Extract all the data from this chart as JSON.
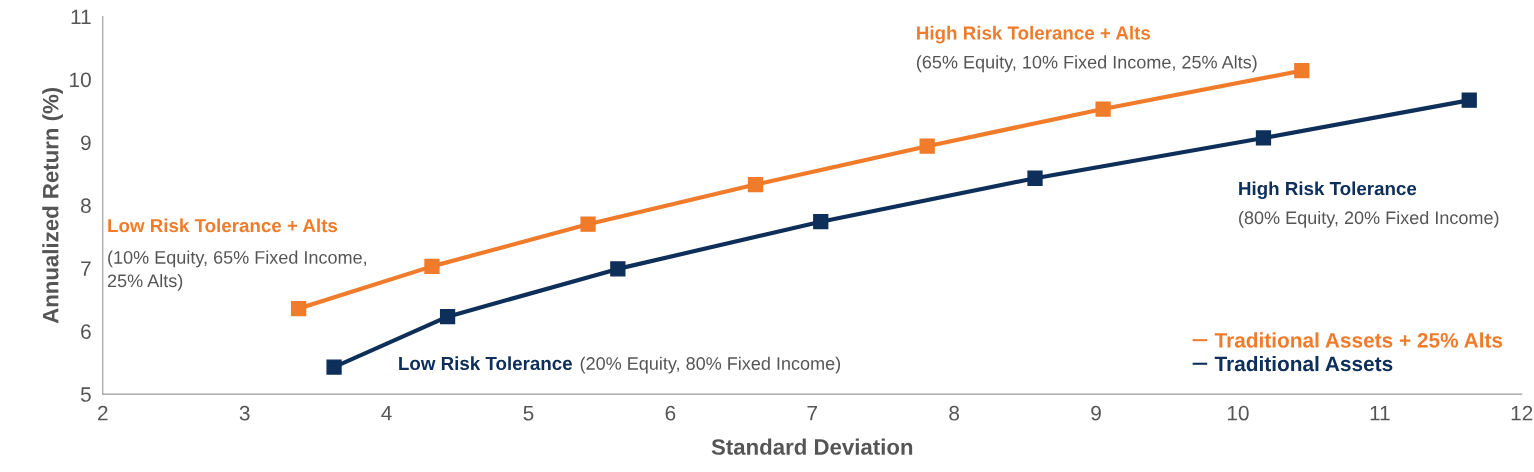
{
  "chart_data": {
    "type": "line",
    "xlabel": "Standard Deviation",
    "ylabel": "Annualized Return (%)",
    "xlim": [
      2,
      12
    ],
    "xticks": [
      2,
      3,
      4,
      5,
      6,
      7,
      8,
      9,
      10,
      11,
      12
    ],
    "ylim": [
      5,
      11
    ],
    "yticks": [
      5,
      6,
      7,
      8,
      9,
      10,
      11
    ],
    "series": [
      {
        "name": "Traditional Assets + 25% Alts",
        "color": "#f07b2a",
        "x": [
          3.38,
          4.32,
          5.42,
          6.6,
          7.81,
          9.05,
          10.45
        ],
        "values": [
          6.36,
          7.03,
          7.7,
          8.33,
          8.94,
          9.53,
          10.14
        ]
      },
      {
        "name": "Traditional Assets",
        "color": "#0d2f5a",
        "x": [
          3.63,
          4.43,
          5.63,
          7.06,
          8.57,
          10.18,
          11.63
        ],
        "values": [
          5.43,
          6.23,
          6.99,
          7.74,
          8.43,
          9.07,
          9.67
        ]
      }
    ],
    "annotations": [
      "High Risk Tolerance + Alts",
      "(65% Equity, 10% Fixed Income, 25% Alts)",
      "Low Risk Tolerance + Alts",
      "(10% Equity, 65% Fixed Income,\n25% Alts)",
      "High Risk Tolerance",
      "(80% Equity, 20% Fixed Income)",
      "Low Risk Tolerance",
      "(20% Equity, 80% Fixed Income)"
    ],
    "marker": "square",
    "line_style": "solid",
    "grid": false,
    "legend": "bottom right"
  }
}
